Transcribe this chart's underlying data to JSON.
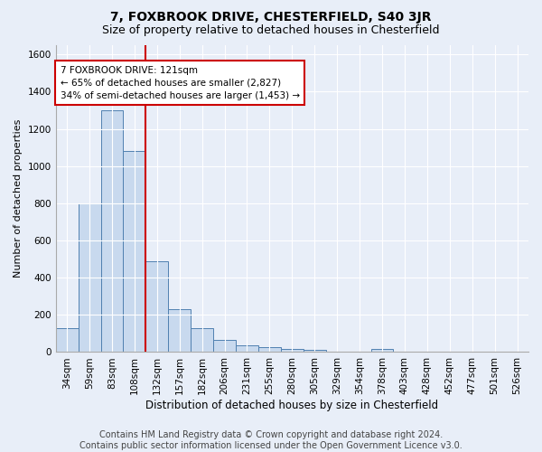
{
  "title1": "7, FOXBROOK DRIVE, CHESTERFIELD, S40 3JR",
  "title2": "Size of property relative to detached houses in Chesterfield",
  "xlabel": "Distribution of detached houses by size in Chesterfield",
  "ylabel": "Number of detached properties",
  "categories": [
    "34sqm",
    "59sqm",
    "83sqm",
    "108sqm",
    "132sqm",
    "157sqm",
    "182sqm",
    "206sqm",
    "231sqm",
    "255sqm",
    "280sqm",
    "305sqm",
    "329sqm",
    "354sqm",
    "378sqm",
    "403sqm",
    "428sqm",
    "452sqm",
    "477sqm",
    "501sqm",
    "526sqm"
  ],
  "values": [
    130,
    800,
    1300,
    1080,
    490,
    230,
    130,
    65,
    35,
    25,
    15,
    12,
    0,
    0,
    15,
    0,
    0,
    0,
    0,
    0,
    0
  ],
  "bar_color": "#c8d9ee",
  "bar_edge_color": "#5080b0",
  "annotation_text": "7 FOXBROOK DRIVE: 121sqm\n← 65% of detached houses are smaller (2,827)\n34% of semi-detached houses are larger (1,453) →",
  "annotation_box_color": "#ffffff",
  "annotation_box_edge": "#cc0000",
  "vline_color": "#cc0000",
  "vline_x": 3.5,
  "ylim": [
    0,
    1650
  ],
  "yticks": [
    0,
    200,
    400,
    600,
    800,
    1000,
    1200,
    1400,
    1600
  ],
  "footer1": "Contains HM Land Registry data © Crown copyright and database right 2024.",
  "footer2": "Contains public sector information licensed under the Open Government Licence v3.0.",
  "bg_color": "#e8eef8",
  "plot_bg_color": "#e8eef8",
  "title1_fontsize": 10,
  "title2_fontsize": 9,
  "xlabel_fontsize": 8.5,
  "ylabel_fontsize": 8,
  "tick_fontsize": 7.5,
  "footer_fontsize": 7,
  "annot_fontsize": 7.5
}
